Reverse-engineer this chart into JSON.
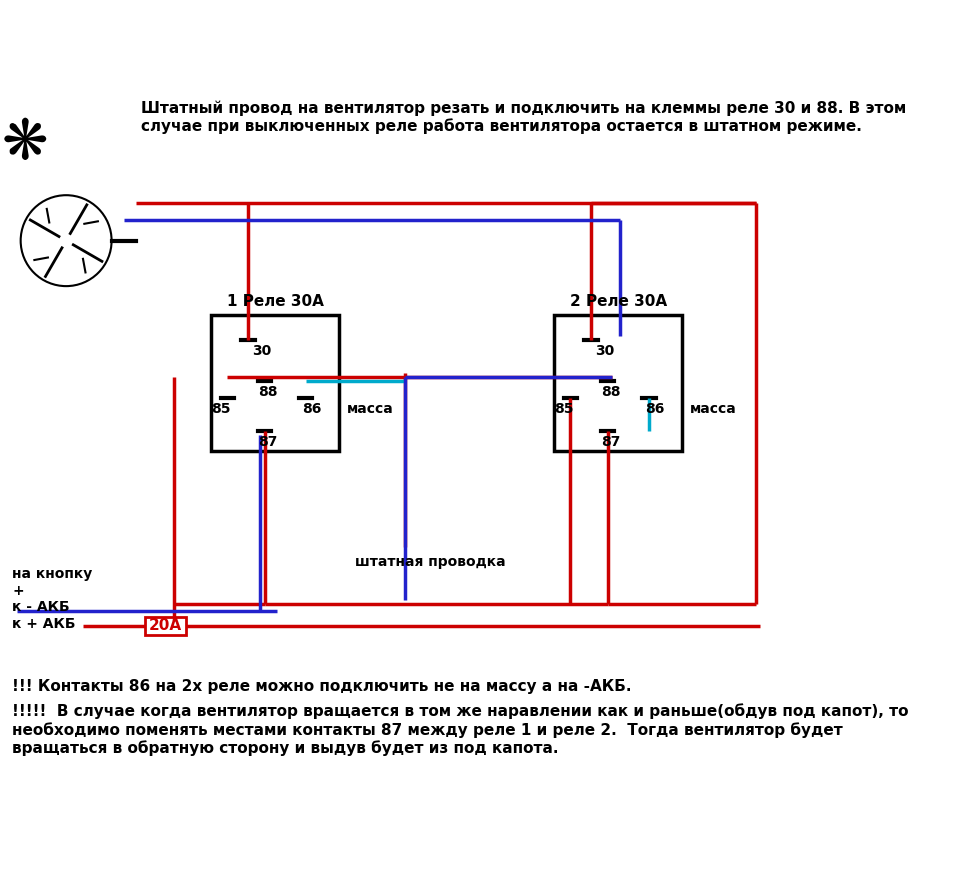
{
  "title_text": "Штатный провод на вентилятор резать и подключить на клеммы реле 30 и 88. В этом\nслучае при выключенных реле работа вентилятора остается в штатном режиме.",
  "bottom_text1": "!!! Контакты 86 на 2х реле можно подключить не на массу а на -АКБ.",
  "bottom_text2": "!!!!!  В случае когда вентилятор вращается в том же наравлении как и раньше(обдув под капот), то\nнеобходимо поменять местами контакты 87 между реле 1 и реле 2.  Тогда вентилятор будет\nвращаться в обратную сторону и выдув будет из под капота.",
  "relay1_label": "1 Реле 30А",
  "relay2_label": "2 Реле 30А",
  "massa_label": "масса",
  "shtatnaya_label": "штатная проводка",
  "label_30_1": "30",
  "label_88_1": "88",
  "label_85_1": "85",
  "label_86_1": "86",
  "label_87_1": "87",
  "label_30_2": "30",
  "label_88_2": "88",
  "label_85_2": "85",
  "label_86_2": "86",
  "label_87_2": "87",
  "label_nakn": "на кнопку",
  "label_plus": "+",
  "label_akb_minus": "к - АКБ",
  "label_akb_plus": "к + АКБ",
  "label_20a": "20А",
  "bg_color": "#ffffff",
  "wire_red": "#cc0000",
  "wire_blue": "#2222cc",
  "wire_cyan": "#00aacc",
  "wire_black": "#000000",
  "relay_box_color": "#000000",
  "text_color": "#000000"
}
